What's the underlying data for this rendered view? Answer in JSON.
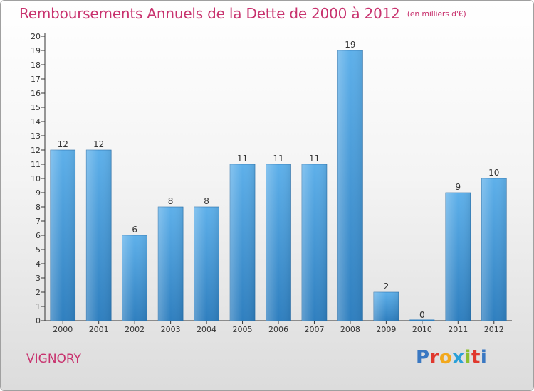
{
  "header": {
    "title": "Remboursements Annuels de la Dette de 2000 à 2012",
    "unit": "(en milliers d'€)"
  },
  "footer": {
    "commune": "VIGNORY",
    "logo_letters": [
      "P",
      "r",
      "o",
      "x",
      "i",
      "t",
      "i"
    ],
    "logo_colors": [
      "#3a78c2",
      "#e0382e",
      "#f2a81d",
      "#2aa0d8",
      "#8ebf2e",
      "#e0382e",
      "#3a78c2"
    ]
  },
  "colors": {
    "bar_top": "#5eb0ea",
    "bar_bottom": "#2f7fbf",
    "axis": "#333333",
    "title": "#c8326e"
  },
  "chart_data": {
    "type": "bar",
    "title": "Remboursements Annuels de la Dette de 2000 à 2012",
    "subtitle": "(en milliers d'€)",
    "xlabel": "",
    "ylabel": "",
    "categories": [
      "2000",
      "2001",
      "2002",
      "2003",
      "2004",
      "2005",
      "2006",
      "2007",
      "2008",
      "2009",
      "2010",
      "2011",
      "2012"
    ],
    "values": [
      12,
      12,
      6,
      8,
      8,
      11,
      11,
      11,
      19,
      2,
      0,
      9,
      10
    ],
    "data_labels": [
      "12",
      "12",
      "6",
      "8",
      "8",
      "11",
      "11",
      "11",
      "19",
      "2",
      "0",
      "9",
      "10"
    ],
    "ylim": [
      0,
      20
    ],
    "yticks": [
      0,
      1,
      2,
      3,
      4,
      5,
      6,
      7,
      8,
      9,
      10,
      11,
      12,
      13,
      14,
      15,
      16,
      17,
      18,
      19,
      20
    ],
    "grid": false,
    "legend": "none"
  }
}
